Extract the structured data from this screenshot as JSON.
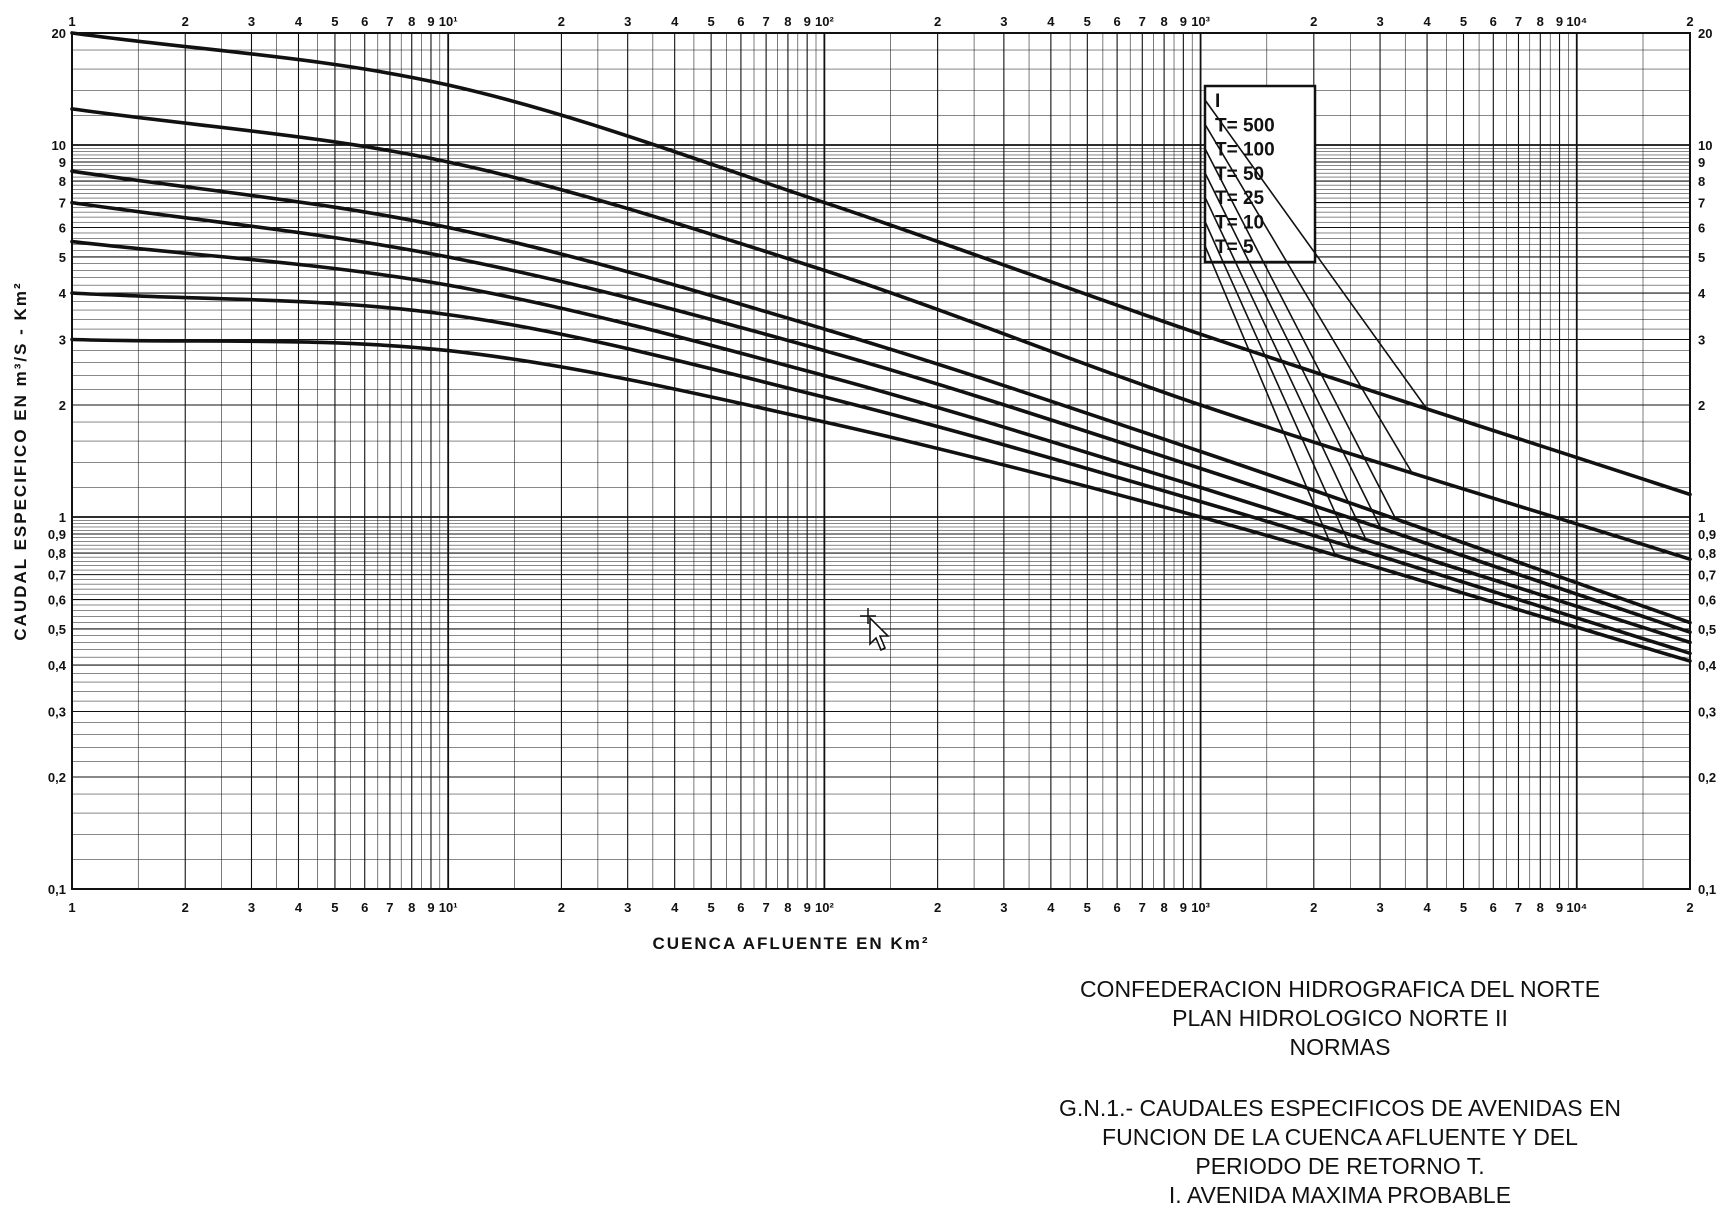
{
  "chart_data": {
    "type": "line",
    "xscale": "log",
    "yscale": "log",
    "xlim": [
      1,
      20000
    ],
    "ylim": [
      0.1,
      20
    ],
    "grid": true,
    "xlabel": "CUENCA  AFLUENTE  EN  Km²",
    "ylabel": "CAUDAL  ESPECIFICO  EN  m³/S - Km²",
    "x_tick_labels": [
      "1",
      "2",
      "3",
      "4",
      "5",
      "6",
      "7",
      "8",
      "9",
      "10¹",
      "2",
      "3",
      "4",
      "5",
      "6",
      "7",
      "8",
      "9",
      "10²",
      "2",
      "3",
      "4",
      "5",
      "6",
      "7",
      "8",
      "9",
      "10³",
      "2",
      "3",
      "4",
      "5",
      "6",
      "7",
      "8",
      "9",
      "10⁴",
      "2"
    ],
    "y_tick_labels_left": [
      "20",
      "10",
      "9",
      "8",
      "7",
      "6",
      "5",
      "4",
      "3",
      "2",
      "1",
      "0,9",
      "0,8",
      "0,7",
      "0,6",
      "0,5",
      "0,4",
      "0,3",
      "0,2",
      "0,1"
    ],
    "y_tick_labels_right": [
      "20",
      "10",
      "9",
      "8",
      "7",
      "6",
      "5",
      "4",
      "3",
      "2",
      "1",
      "0,9",
      "0,8",
      "0,7",
      "0,6",
      "0,5",
      "0,4",
      "0,3",
      "0,2",
      "0,1"
    ],
    "legend": {
      "position": "top-right-inside",
      "entries": [
        "I",
        "T= 500",
        "T= 100",
        "T=  50",
        "T=  25",
        "T=  10",
        "T=   5"
      ]
    },
    "series": [
      {
        "name": "I",
        "x": [
          1,
          10,
          100,
          1000,
          20000
        ],
        "y": [
          20,
          14.5,
          7.0,
          3.1,
          1.15
        ]
      },
      {
        "name": "T= 500",
        "x": [
          1,
          10,
          100,
          1000,
          20000
        ],
        "y": [
          12.5,
          9.0,
          4.6,
          2.0,
          0.77
        ]
      },
      {
        "name": "T= 100",
        "x": [
          1,
          10,
          100,
          1000,
          20000
        ],
        "y": [
          8.5,
          6.0,
          3.2,
          1.5,
          0.52
        ]
      },
      {
        "name": "T=  50",
        "x": [
          1,
          10,
          100,
          1000,
          20000
        ],
        "y": [
          7.0,
          5.0,
          2.8,
          1.35,
          0.49
        ]
      },
      {
        "name": "T=  25",
        "x": [
          1,
          10,
          100,
          1000,
          20000
        ],
        "y": [
          5.5,
          4.2,
          2.4,
          1.2,
          0.46
        ]
      },
      {
        "name": "T=  10",
        "x": [
          1,
          10,
          100,
          1000,
          20000
        ],
        "y": [
          4.0,
          3.5,
          2.1,
          1.1,
          0.43
        ]
      },
      {
        "name": "T=   5",
        "x": [
          1,
          10,
          100,
          1000,
          20000
        ],
        "y": [
          3.0,
          2.8,
          1.8,
          1.0,
          0.41
        ]
      }
    ]
  },
  "caption": {
    "line1": "CONFEDERACION HIDROGRAFICA DEL NORTE",
    "line2": "PLAN HIDROLOGICO NORTE II",
    "line3": "NORMAS",
    "line4": "G.N.1.- CAUDALES ESPECIFICOS DE AVENIDAS EN",
    "line5": "FUNCION DE LA CUENCA AFLUENTE Y DEL",
    "line6": "PERIODO DE RETORNO T.",
    "line7": "I. AVENIDA MAXIMA PROBABLE"
  }
}
